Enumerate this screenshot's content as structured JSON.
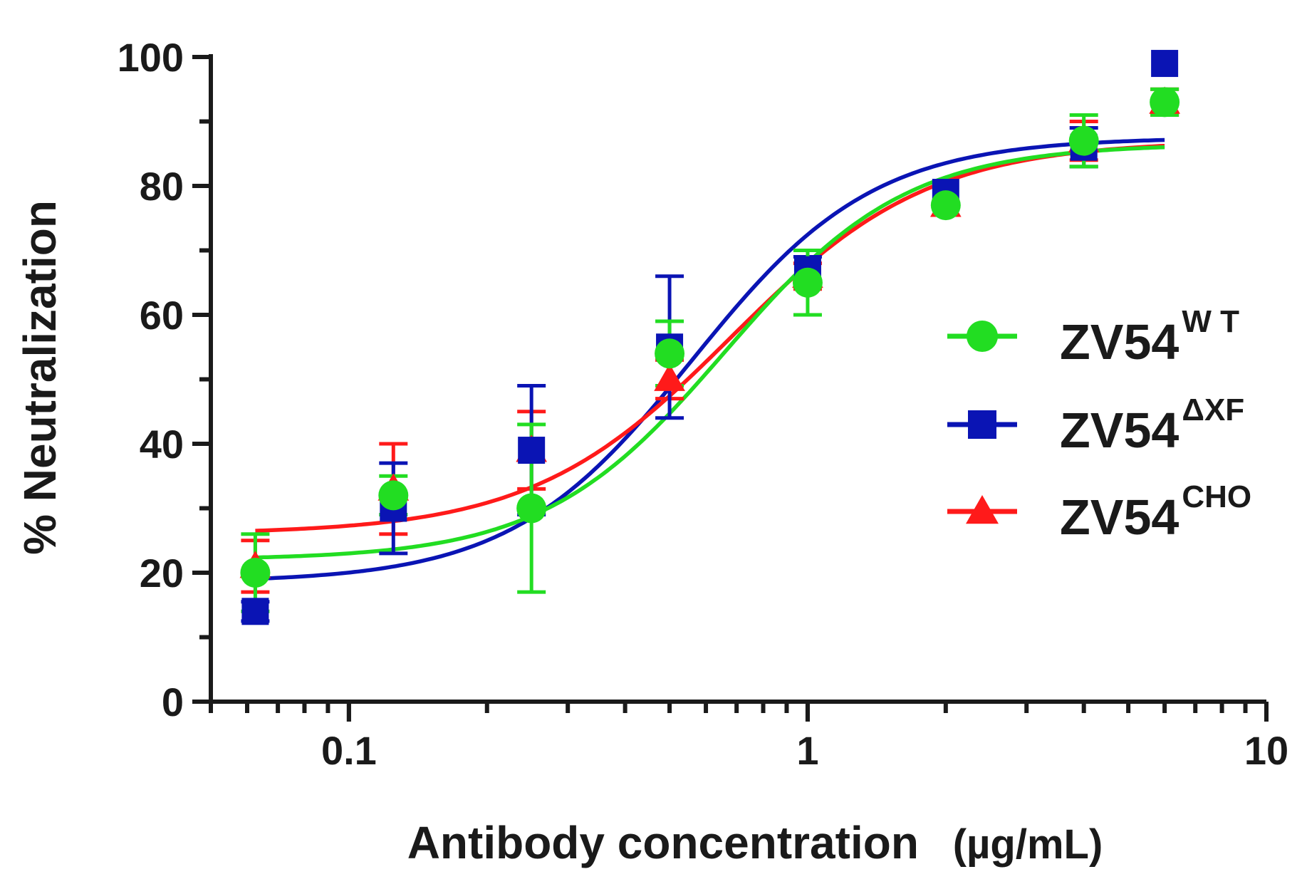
{
  "chart_data": {
    "type": "scatter",
    "title": "",
    "xlabel": "Antibody concentration",
    "xlabel_unit": "(µg/mL)",
    "ylabel": "% Neutralization",
    "xscale": "log",
    "xlim": [
      0.05,
      10
    ],
    "ylim": [
      0,
      100
    ],
    "x_ticks": [
      0.1,
      1,
      10
    ],
    "x_tick_labels": [
      "0.1",
      "1",
      "10"
    ],
    "y_ticks": [
      0,
      20,
      40,
      60,
      80,
      100
    ],
    "y_tick_labels": [
      "0",
      "20",
      "40",
      "60",
      "80",
      "100"
    ],
    "legend_position": "right",
    "series": [
      {
        "key": "cho",
        "name": "ZV54",
        "name_sup": "CHO",
        "color": "#ff1a1a",
        "marker": "triangle",
        "x": [
          0.0625,
          0.125,
          0.25,
          0.5,
          1,
          2,
          4,
          6
        ],
        "y": [
          21,
          33,
          39,
          50,
          66,
          77,
          87,
          93
        ],
        "err": [
          4,
          7,
          6,
          3,
          2,
          1,
          3,
          2
        ],
        "fit": {
          "bottom": 26,
          "top": 87,
          "ec50": 0.68,
          "hill": 2.0
        }
      },
      {
        "key": "dxf",
        "name": "ZV54",
        "name_sup": "ΔXF",
        "color": "#0a14b4",
        "marker": "square",
        "x": [
          0.0625,
          0.125,
          0.25,
          0.5,
          1,
          2,
          4,
          6
        ],
        "y": [
          14,
          30,
          39,
          55,
          67,
          79,
          86,
          99
        ],
        "err": [
          1.5,
          7,
          10,
          11,
          2,
          1,
          3,
          1
        ],
        "fit": {
          "bottom": 18.5,
          "top": 87.5,
          "ec50": 0.56,
          "hill": 2.2
        }
      },
      {
        "key": "wt",
        "name": "ZV54",
        "name_sup": "W T",
        "color": "#22dd22",
        "marker": "circle",
        "x": [
          0.0625,
          0.125,
          0.25,
          0.5,
          1,
          2,
          4,
          6
        ],
        "y": [
          20,
          32,
          30,
          54,
          65,
          77,
          87,
          93
        ],
        "err": [
          6,
          3,
          13,
          5,
          5,
          1,
          4,
          2
        ],
        "fit": {
          "bottom": 22,
          "top": 86.5,
          "ec50": 0.66,
          "hill": 2.2
        }
      }
    ],
    "legend_order": [
      "wt",
      "dxf",
      "cho"
    ]
  }
}
